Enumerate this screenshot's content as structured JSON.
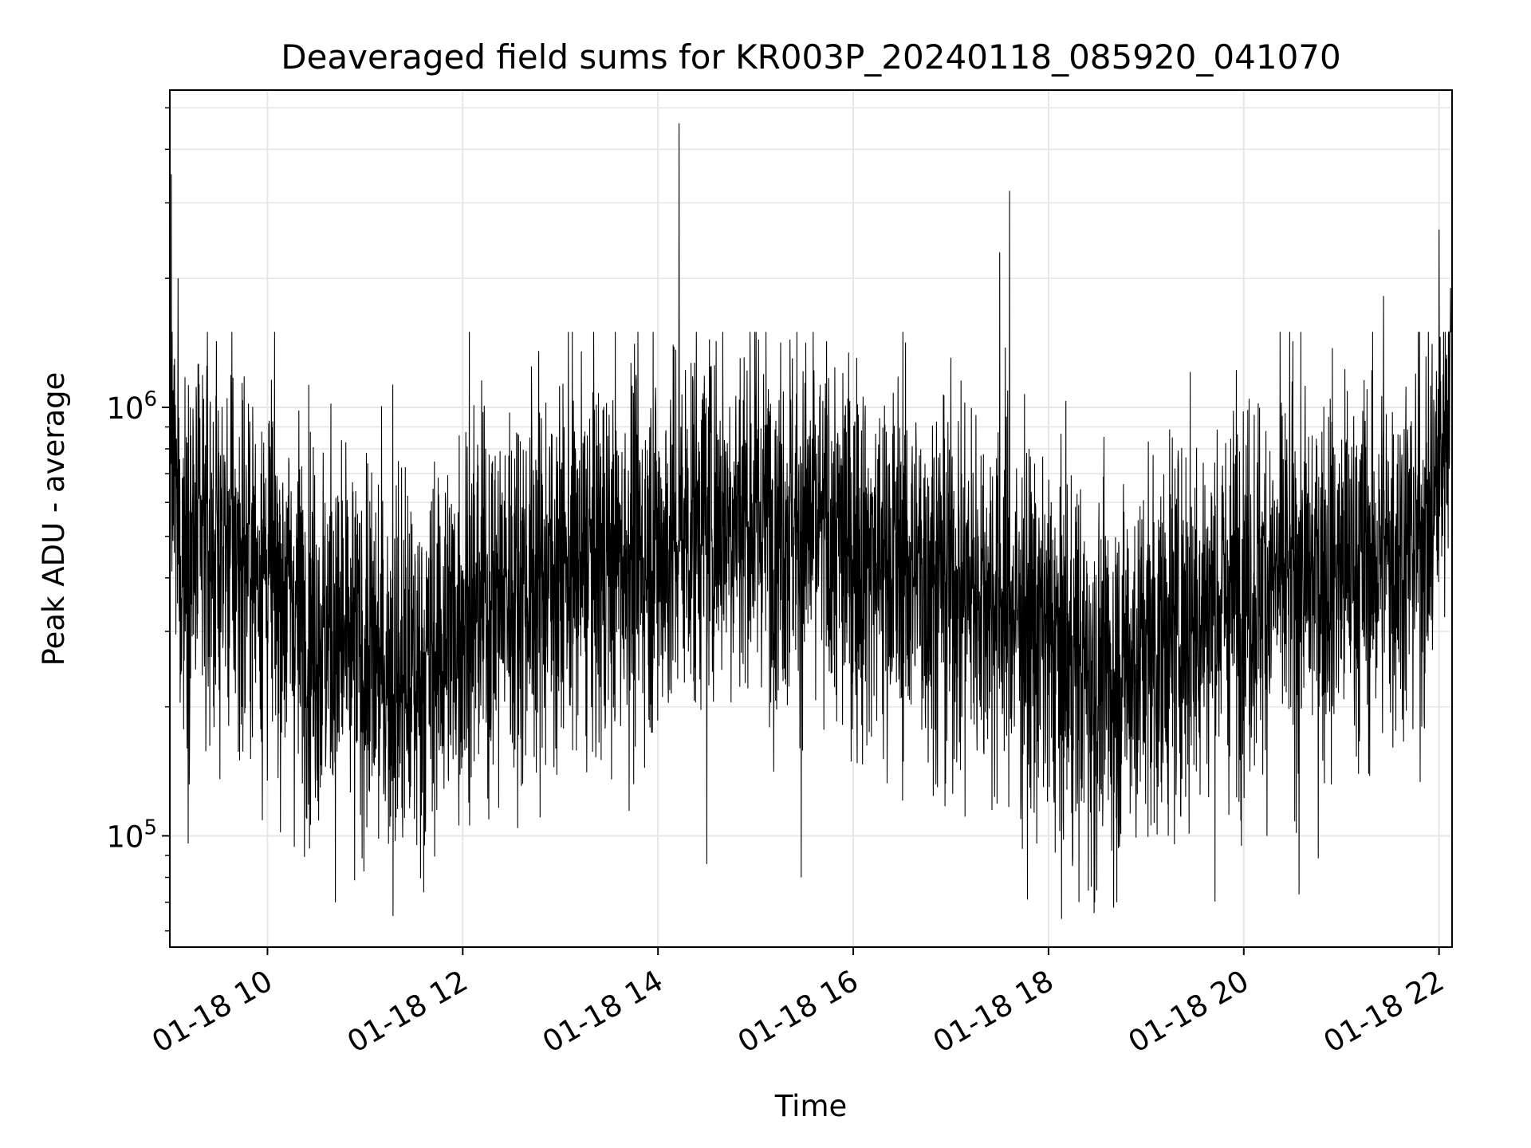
{
  "chart_data": {
    "type": "line",
    "title": "Deaveraged field sums for KR003P_20240118_085920_041070",
    "xlabel": "Time",
    "ylabel": "Peak ADU - average",
    "y_scale": "log",
    "ylim": [
      55000,
      5500000
    ],
    "xlim": [
      "01-18 09:00",
      "01-18 22:08"
    ],
    "grid": true,
    "line_color": "#000000",
    "x_ticks": [
      "01-18 10",
      "01-18 12",
      "01-18 14",
      "01-18 16",
      "01-18 18",
      "01-18 20",
      "01-18 22"
    ],
    "y_ticks": [
      {
        "value": 100000,
        "base": "10",
        "exponent": "5"
      },
      {
        "value": 1000000,
        "base": "10",
        "exponent": "6"
      }
    ],
    "series": [
      {
        "profile_hour": [
          9.0,
          9.1,
          9.5,
          10.0,
          10.5,
          11.0,
          11.5,
          12.0,
          12.5,
          13.0,
          13.5,
          14.0,
          14.5,
          15.0,
          15.5,
          16.0,
          16.5,
          17.0,
          17.5,
          18.0,
          18.5,
          19.0,
          19.5,
          20.0,
          20.5,
          21.0,
          21.5,
          21.9,
          22.0,
          22.13
        ],
        "profile_median": [
          900000,
          460000,
          480000,
          420000,
          300000,
          260000,
          230000,
          330000,
          380000,
          420000,
          440000,
          460000,
          570000,
          580000,
          530000,
          460000,
          430000,
          390000,
          360000,
          280000,
          230000,
          270000,
          330000,
          380000,
          400000,
          420000,
          450000,
          520000,
          700000,
          1400000
        ],
        "spikes": [
          {
            "x": "01-18 09:01",
            "y": 3500000
          },
          {
            "x": "01-18 09:05",
            "y": 2000000
          },
          {
            "x": "01-18 10:39",
            "y": 1020000
          },
          {
            "x": "01-18 11:17",
            "y": 1130000
          },
          {
            "x": "01-18 11:17",
            "y": 65000
          },
          {
            "x": "01-18 12:04",
            "y": 1500000
          },
          {
            "x": "01-18 13:57",
            "y": 1500000
          },
          {
            "x": "01-18 14:13",
            "y": 4600000
          },
          {
            "x": "01-18 14:30",
            "y": 86000
          },
          {
            "x": "01-18 15:28",
            "y": 80000
          },
          {
            "x": "01-18 17:30",
            "y": 2300000
          },
          {
            "x": "01-18 17:36",
            "y": 3200000
          },
          {
            "x": "01-18 17:47",
            "y": 71000
          },
          {
            "x": "01-18 18:08",
            "y": 64000
          },
          {
            "x": "01-18 18:28",
            "y": 66000
          },
          {
            "x": "01-18 18:40",
            "y": 68000
          },
          {
            "x": "01-18 20:34",
            "y": 73000
          },
          {
            "x": "01-18 21:26",
            "y": 1820000
          },
          {
            "x": "01-18 22:00",
            "y": 2600000
          },
          {
            "x": "01-18 22:07",
            "y": 1900000
          }
        ]
      }
    ]
  }
}
